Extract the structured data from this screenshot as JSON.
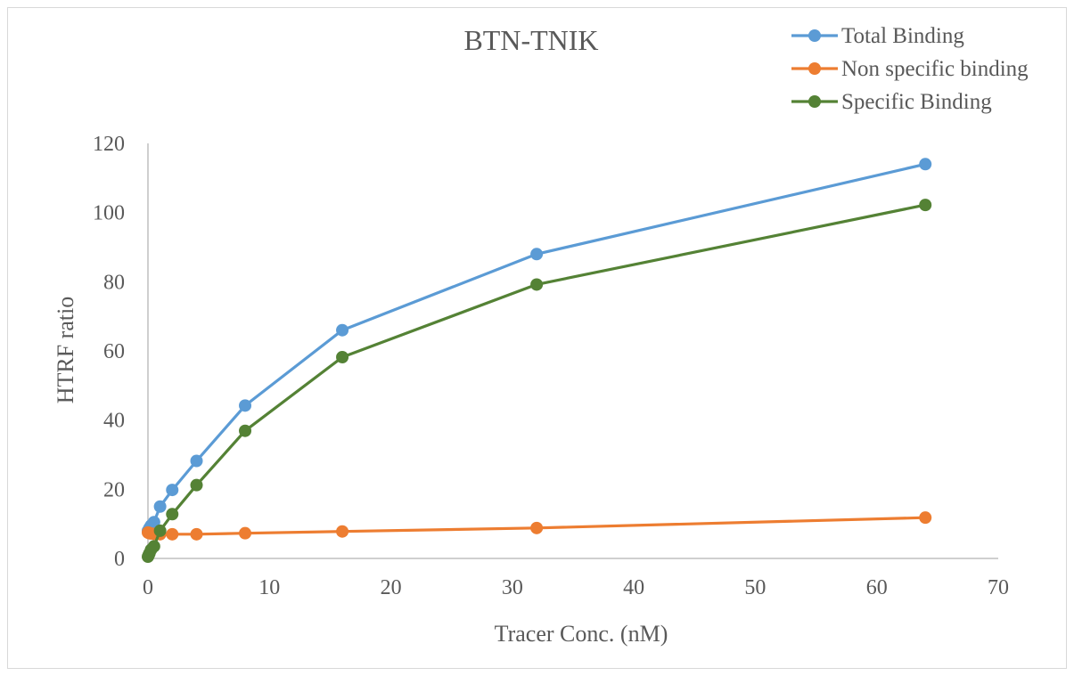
{
  "chart_data": {
    "type": "line",
    "title": "BTN-TNIK",
    "xlabel": "Tracer Conc. (nM)",
    "ylabel": "HTRF ratio",
    "xlim": [
      0,
      70
    ],
    "ylim": [
      0,
      120
    ],
    "x_ticks": [
      0,
      10,
      20,
      30,
      40,
      50,
      60,
      70
    ],
    "y_ticks": [
      0,
      20,
      40,
      60,
      80,
      100,
      120
    ],
    "grid": false,
    "legend_position": "top-right",
    "series": [
      {
        "name": "Total Binding",
        "color": "#5b9bd5",
        "x": [
          0,
          0.0625,
          0.125,
          0.25,
          0.5,
          1,
          2,
          4,
          8,
          16,
          32,
          64
        ],
        "y": [
          8,
          8.3,
          8.8,
          9.5,
          10.5,
          15,
          19.8,
          28.2,
          44.2,
          66,
          88,
          114
        ]
      },
      {
        "name": "Non specific binding",
        "color": "#ed7d31",
        "x": [
          0,
          0.0625,
          0.125,
          0.25,
          0.5,
          1,
          2,
          4,
          8,
          16,
          32,
          64
        ],
        "y": [
          7.5,
          7.4,
          7.3,
          7.2,
          7.1,
          7.0,
          7.0,
          7.0,
          7.3,
          7.8,
          8.8,
          11.8
        ]
      },
      {
        "name": "Specific Binding",
        "color": "#548235",
        "x": [
          0,
          0.0625,
          0.125,
          0.25,
          0.5,
          1,
          2,
          4,
          8,
          16,
          32,
          64
        ],
        "y": [
          0.5,
          1.0,
          1.5,
          2.5,
          3.5,
          8,
          12.8,
          21.2,
          36.9,
          58.2,
          79.2,
          102.2
        ]
      }
    ]
  }
}
